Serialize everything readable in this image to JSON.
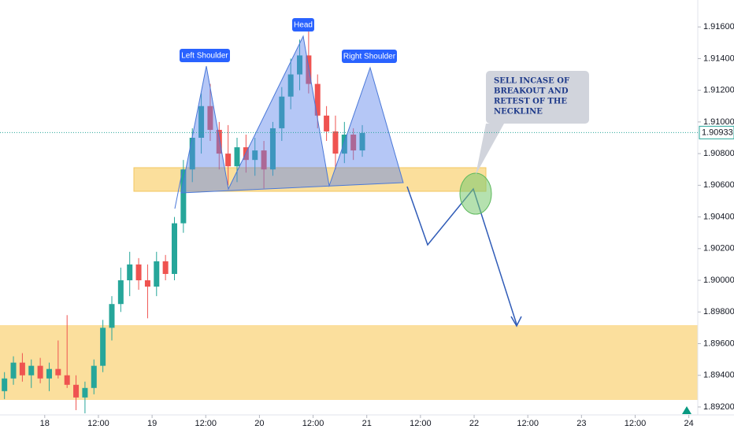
{
  "chart_data": {
    "type": "candlestick",
    "x": [
      -9,
      -7,
      -5,
      -3,
      -1,
      1,
      3,
      5,
      7,
      9,
      11,
      13,
      15,
      17,
      19,
      21,
      23,
      25,
      27,
      29,
      31,
      33,
      35,
      37,
      39,
      41,
      43,
      45,
      47,
      49,
      51,
      53,
      55,
      57,
      59,
      61,
      63,
      65,
      67,
      69,
      71
    ],
    "open": [
      1.893,
      1.8938,
      1.8948,
      1.894,
      1.8946,
      1.8938,
      1.8944,
      1.894,
      1.8934,
      1.8926,
      1.8932,
      1.8946,
      1.897,
      1.8985,
      1.9,
      1.901,
      1.9,
      1.8996,
      1.9012,
      1.9004,
      1.9036,
      1.907,
      1.909,
      1.911,
      1.9095,
      1.908,
      1.9072,
      1.9084,
      1.9076,
      1.9082,
      1.907,
      1.9096,
      1.9116,
      1.913,
      1.9142,
      1.9124,
      1.9104,
      1.9094,
      1.908,
      1.9092,
      1.9082
    ],
    "high": [
      1.8942,
      1.8952,
      1.8954,
      1.895,
      1.8951,
      1.8948,
      1.8962,
      1.8978,
      1.894,
      1.8936,
      1.895,
      1.8975,
      1.899,
      1.9008,
      1.9018,
      1.9014,
      1.901,
      1.9018,
      1.9016,
      1.904,
      1.9076,
      1.9096,
      1.9118,
      1.9124,
      1.91,
      1.9098,
      1.909,
      1.9092,
      1.909,
      1.9088,
      1.91,
      1.9122,
      1.914,
      1.9152,
      1.9162,
      1.913,
      1.911,
      1.9104,
      1.91,
      1.9096,
      1.9098
    ],
    "low": [
      1.8925,
      1.8934,
      1.8936,
      1.8932,
      1.8935,
      1.893,
      1.8938,
      1.8932,
      1.8918,
      1.8916,
      1.8928,
      1.8942,
      1.8962,
      1.898,
      1.899,
      1.8994,
      1.8976,
      1.899,
      1.9,
      1.9,
      1.903,
      1.9062,
      1.908,
      1.9088,
      1.907,
      1.906,
      1.9062,
      1.9068,
      1.9066,
      1.9058,
      1.9066,
      1.9088,
      1.9108,
      1.912,
      1.9118,
      1.9096,
      1.9088,
      1.907,
      1.9074,
      1.9076,
      1.9078
    ],
    "close": [
      1.8938,
      1.8948,
      1.894,
      1.8946,
      1.8938,
      1.8944,
      1.894,
      1.8934,
      1.8926,
      1.8932,
      1.8946,
      1.897,
      1.8985,
      1.9,
      1.901,
      1.9,
      1.8996,
      1.9012,
      1.9004,
      1.9036,
      1.907,
      1.909,
      1.911,
      1.9095,
      1.908,
      1.9072,
      1.9084,
      1.9076,
      1.9082,
      1.907,
      1.9096,
      1.9116,
      1.913,
      1.9142,
      1.9124,
      1.9104,
      1.9094,
      1.908,
      1.9092,
      1.9082,
      1.9093
    ],
    "up_color": "#26a69a",
    "down_color": "#ef5350",
    "xlim": [
      -10,
      146
    ],
    "xticks": [
      {
        "value": 0,
        "label": "18"
      },
      {
        "value": 12,
        "label": "12:00"
      },
      {
        "value": 24,
        "label": "19"
      },
      {
        "value": 36,
        "label": "12:00"
      },
      {
        "value": 48,
        "label": "20"
      },
      {
        "value": 60,
        "label": "12:00"
      },
      {
        "value": 72,
        "label": "21"
      },
      {
        "value": 84,
        "label": "12:00"
      },
      {
        "value": 96,
        "label": "22"
      },
      {
        "value": 108,
        "label": "12:00"
      },
      {
        "value": 120,
        "label": "23"
      },
      {
        "value": 132,
        "label": "12:00"
      },
      {
        "value": 144,
        "label": "24"
      }
    ],
    "ylim": [
      1.8915,
      1.9177
    ],
    "yticks": [
      {
        "value": 1.892,
        "label": "1.89200"
      },
      {
        "value": 1.894,
        "label": "1.89400"
      },
      {
        "value": 1.896,
        "label": "1.89600"
      },
      {
        "value": 1.898,
        "label": "1.89800"
      },
      {
        "value": 1.9,
        "label": "1.90000"
      },
      {
        "value": 1.902,
        "label": "1.90200"
      },
      {
        "value": 1.904,
        "label": "1.90400"
      },
      {
        "value": 1.906,
        "label": "1.90600"
      },
      {
        "value": 1.908,
        "label": "1.90800"
      },
      {
        "value": 1.91,
        "label": "1.91000"
      },
      {
        "value": 1.912,
        "label": "1.91200"
      },
      {
        "value": 1.914,
        "label": "1.91400"
      },
      {
        "value": 1.916,
        "label": "1.91600"
      }
    ],
    "last_price": {
      "value": 1.90933,
      "label": "1.90933"
    },
    "annotations": {
      "left_shoulder": "Left Shoulder",
      "head": "Head",
      "right_shoulder": "Right Shoulder",
      "note": [
        "SELL INCASE OF",
        "BREAKOUT AND",
        "RETEST OF THE",
        "NECKLINE"
      ]
    }
  }
}
